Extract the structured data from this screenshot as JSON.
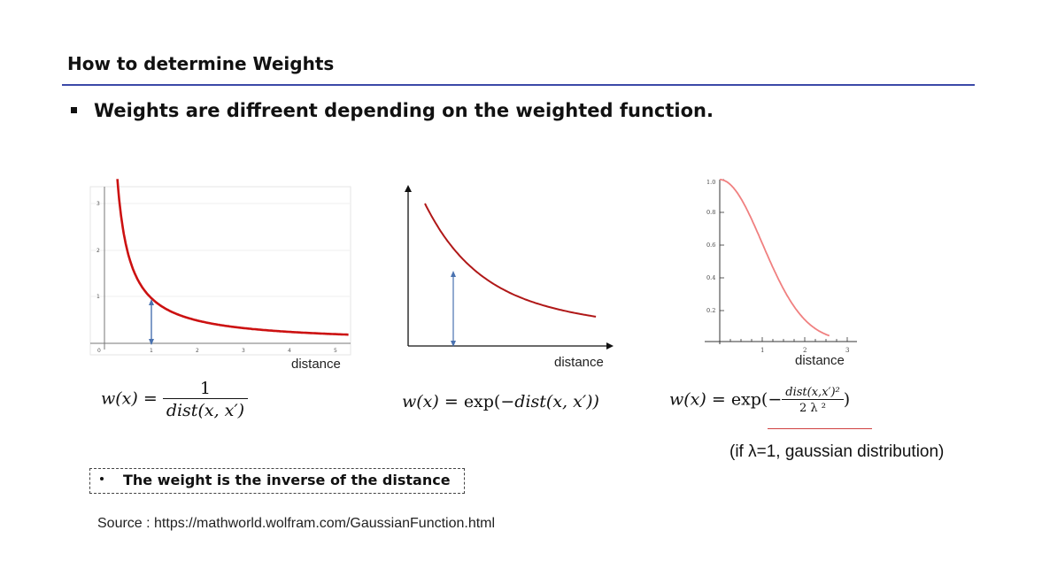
{
  "slide": {
    "title": "How to determine Weights",
    "bullet": "Weights are diffreent depending on the weighted function."
  },
  "graphs": [
    {
      "xlabel": "distance",
      "x_ticks": [
        "0",
        "1",
        "2",
        "3",
        "4",
        "5"
      ],
      "y_ticks": [
        "1",
        "2",
        "3"
      ],
      "curve_color": "#cc1111",
      "arrow_color": "#4a72b0"
    },
    {
      "xlabel": "distance",
      "curve_color": "#b01818",
      "arrow_color": "#4a72b0"
    },
    {
      "xlabel": "distance",
      "x_ticks": [
        "1",
        "2",
        "3"
      ],
      "y_ticks": [
        "0.2",
        "0.4",
        "0.6",
        "0.8",
        "1.0"
      ],
      "curve_color": "#f08080"
    }
  ],
  "formulas": {
    "f1": {
      "lhs": "w(x) =",
      "num": "1",
      "den": "dist(x, x′)"
    },
    "f2": {
      "lhs": "w(x) =",
      "fn": "exp(",
      "body": "−dist(x, x′))"
    },
    "f3": {
      "lhs": "w(x) =",
      "fn": "exp(−",
      "num": "dist(x,x′)²",
      "den": "2 λ ²",
      "close": ")"
    }
  },
  "lambda_note": "(if λ=1, gaussian distribution)",
  "note": "The weight is the inverse of the distance",
  "source": "Source : https://mathworld.wolfram.com/GaussianFunction.html"
}
